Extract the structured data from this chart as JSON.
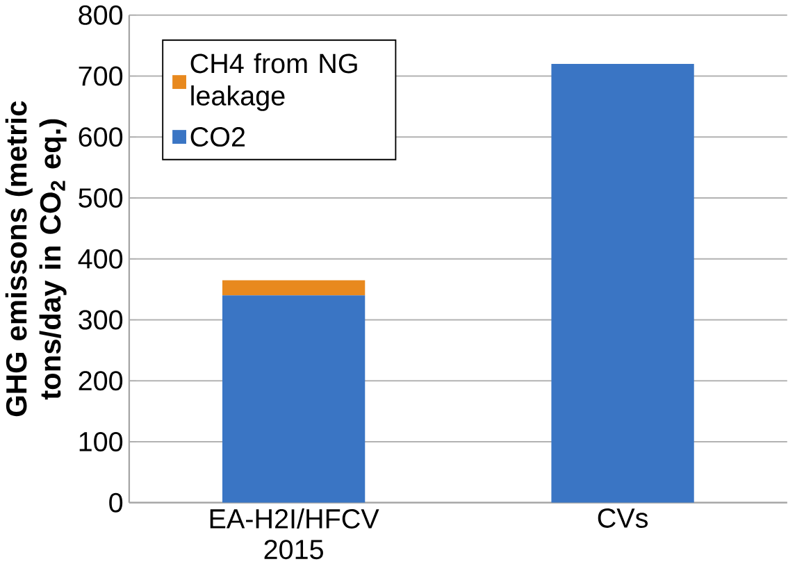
{
  "chart_data": {
    "type": "bar",
    "stacked": true,
    "ylabel": "GHG emissons (metric tons/day in CO$_{2}$ eq.)",
    "categories": [
      "EA-H2I/HFCV 2015",
      "CVs"
    ],
    "series": [
      {
        "name": "CO2",
        "color": "#3a75c4",
        "values": [
          340,
          720
        ]
      },
      {
        "name": "CH4 from NG leakage",
        "color": "#e8891e",
        "values": [
          25,
          null
        ]
      }
    ],
    "ylim": [
      0,
      800
    ],
    "yticks": [
      0,
      100,
      200,
      300,
      400,
      500,
      600,
      700,
      800
    ],
    "grid": "y",
    "legend": "top left"
  }
}
